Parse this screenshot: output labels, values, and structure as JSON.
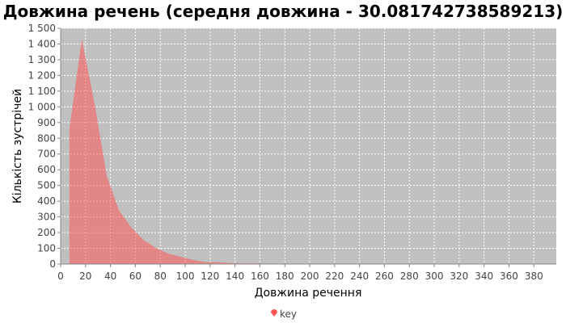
{
  "chart_data": {
    "type": "area",
    "title": "Довжина речень (середня довжина - 30.081742738589213)",
    "xlabel": "Довжина речення",
    "ylabel": "Кількість зустрічей",
    "xlim": [
      0,
      398
    ],
    "ylim": [
      0,
      1500
    ],
    "x_ticks": [
      0,
      20,
      40,
      60,
      80,
      100,
      120,
      140,
      160,
      180,
      200,
      220,
      240,
      260,
      280,
      300,
      320,
      340,
      360,
      380
    ],
    "y_ticks": [
      0,
      100,
      200,
      300,
      400,
      500,
      600,
      700,
      800,
      900,
      1000,
      1100,
      1200,
      1300,
      1400,
      1500
    ],
    "y_tick_labels": [
      "0",
      "100",
      "200",
      "300",
      "400",
      "500",
      "600",
      "700",
      "800",
      "900",
      "1 000",
      "1 100",
      "1 200",
      "1 300",
      "1 400",
      "1 500"
    ],
    "grid": true,
    "legend_position": "bottom",
    "series": [
      {
        "name": "key",
        "color": "#FF5555",
        "x": [
          7,
          17,
          27,
          37,
          47,
          57,
          67,
          77,
          87,
          97,
          107,
          117,
          127,
          137,
          147,
          157,
          167,
          177,
          187,
          197,
          247,
          297,
          347,
          377,
          387
        ],
        "y": [
          860,
          1430,
          1030,
          560,
          340,
          230,
          150,
          100,
          65,
          45,
          25,
          12,
          12,
          5,
          5,
          4,
          3,
          2,
          1,
          1,
          0,
          0,
          0,
          1,
          0
        ]
      }
    ]
  }
}
